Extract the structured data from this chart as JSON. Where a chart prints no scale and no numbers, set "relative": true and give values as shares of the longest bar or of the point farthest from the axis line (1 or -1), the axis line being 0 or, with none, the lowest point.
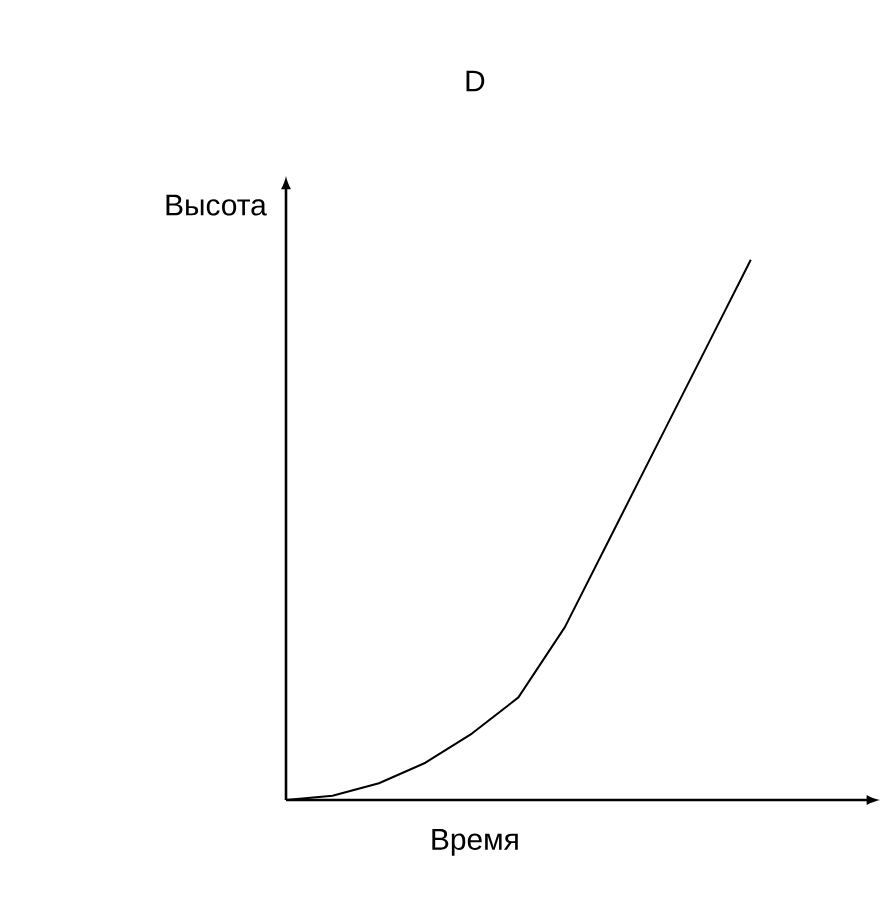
{
  "chart_data": {
    "type": "line",
    "title": "D",
    "xlabel": "Время",
    "ylabel": "Высота",
    "relative": true,
    "color": "#000000",
    "categories": [
      null,
      null,
      null,
      null,
      null,
      null,
      null,
      null,
      null,
      null,
      null,
      null,
      null
    ],
    "values": [
      0,
      0.008,
      0.031,
      0.069,
      0.123,
      0.19,
      0.32,
      0.49,
      0.66,
      0.83,
      1.0,
      null,
      null
    ]
  }
}
